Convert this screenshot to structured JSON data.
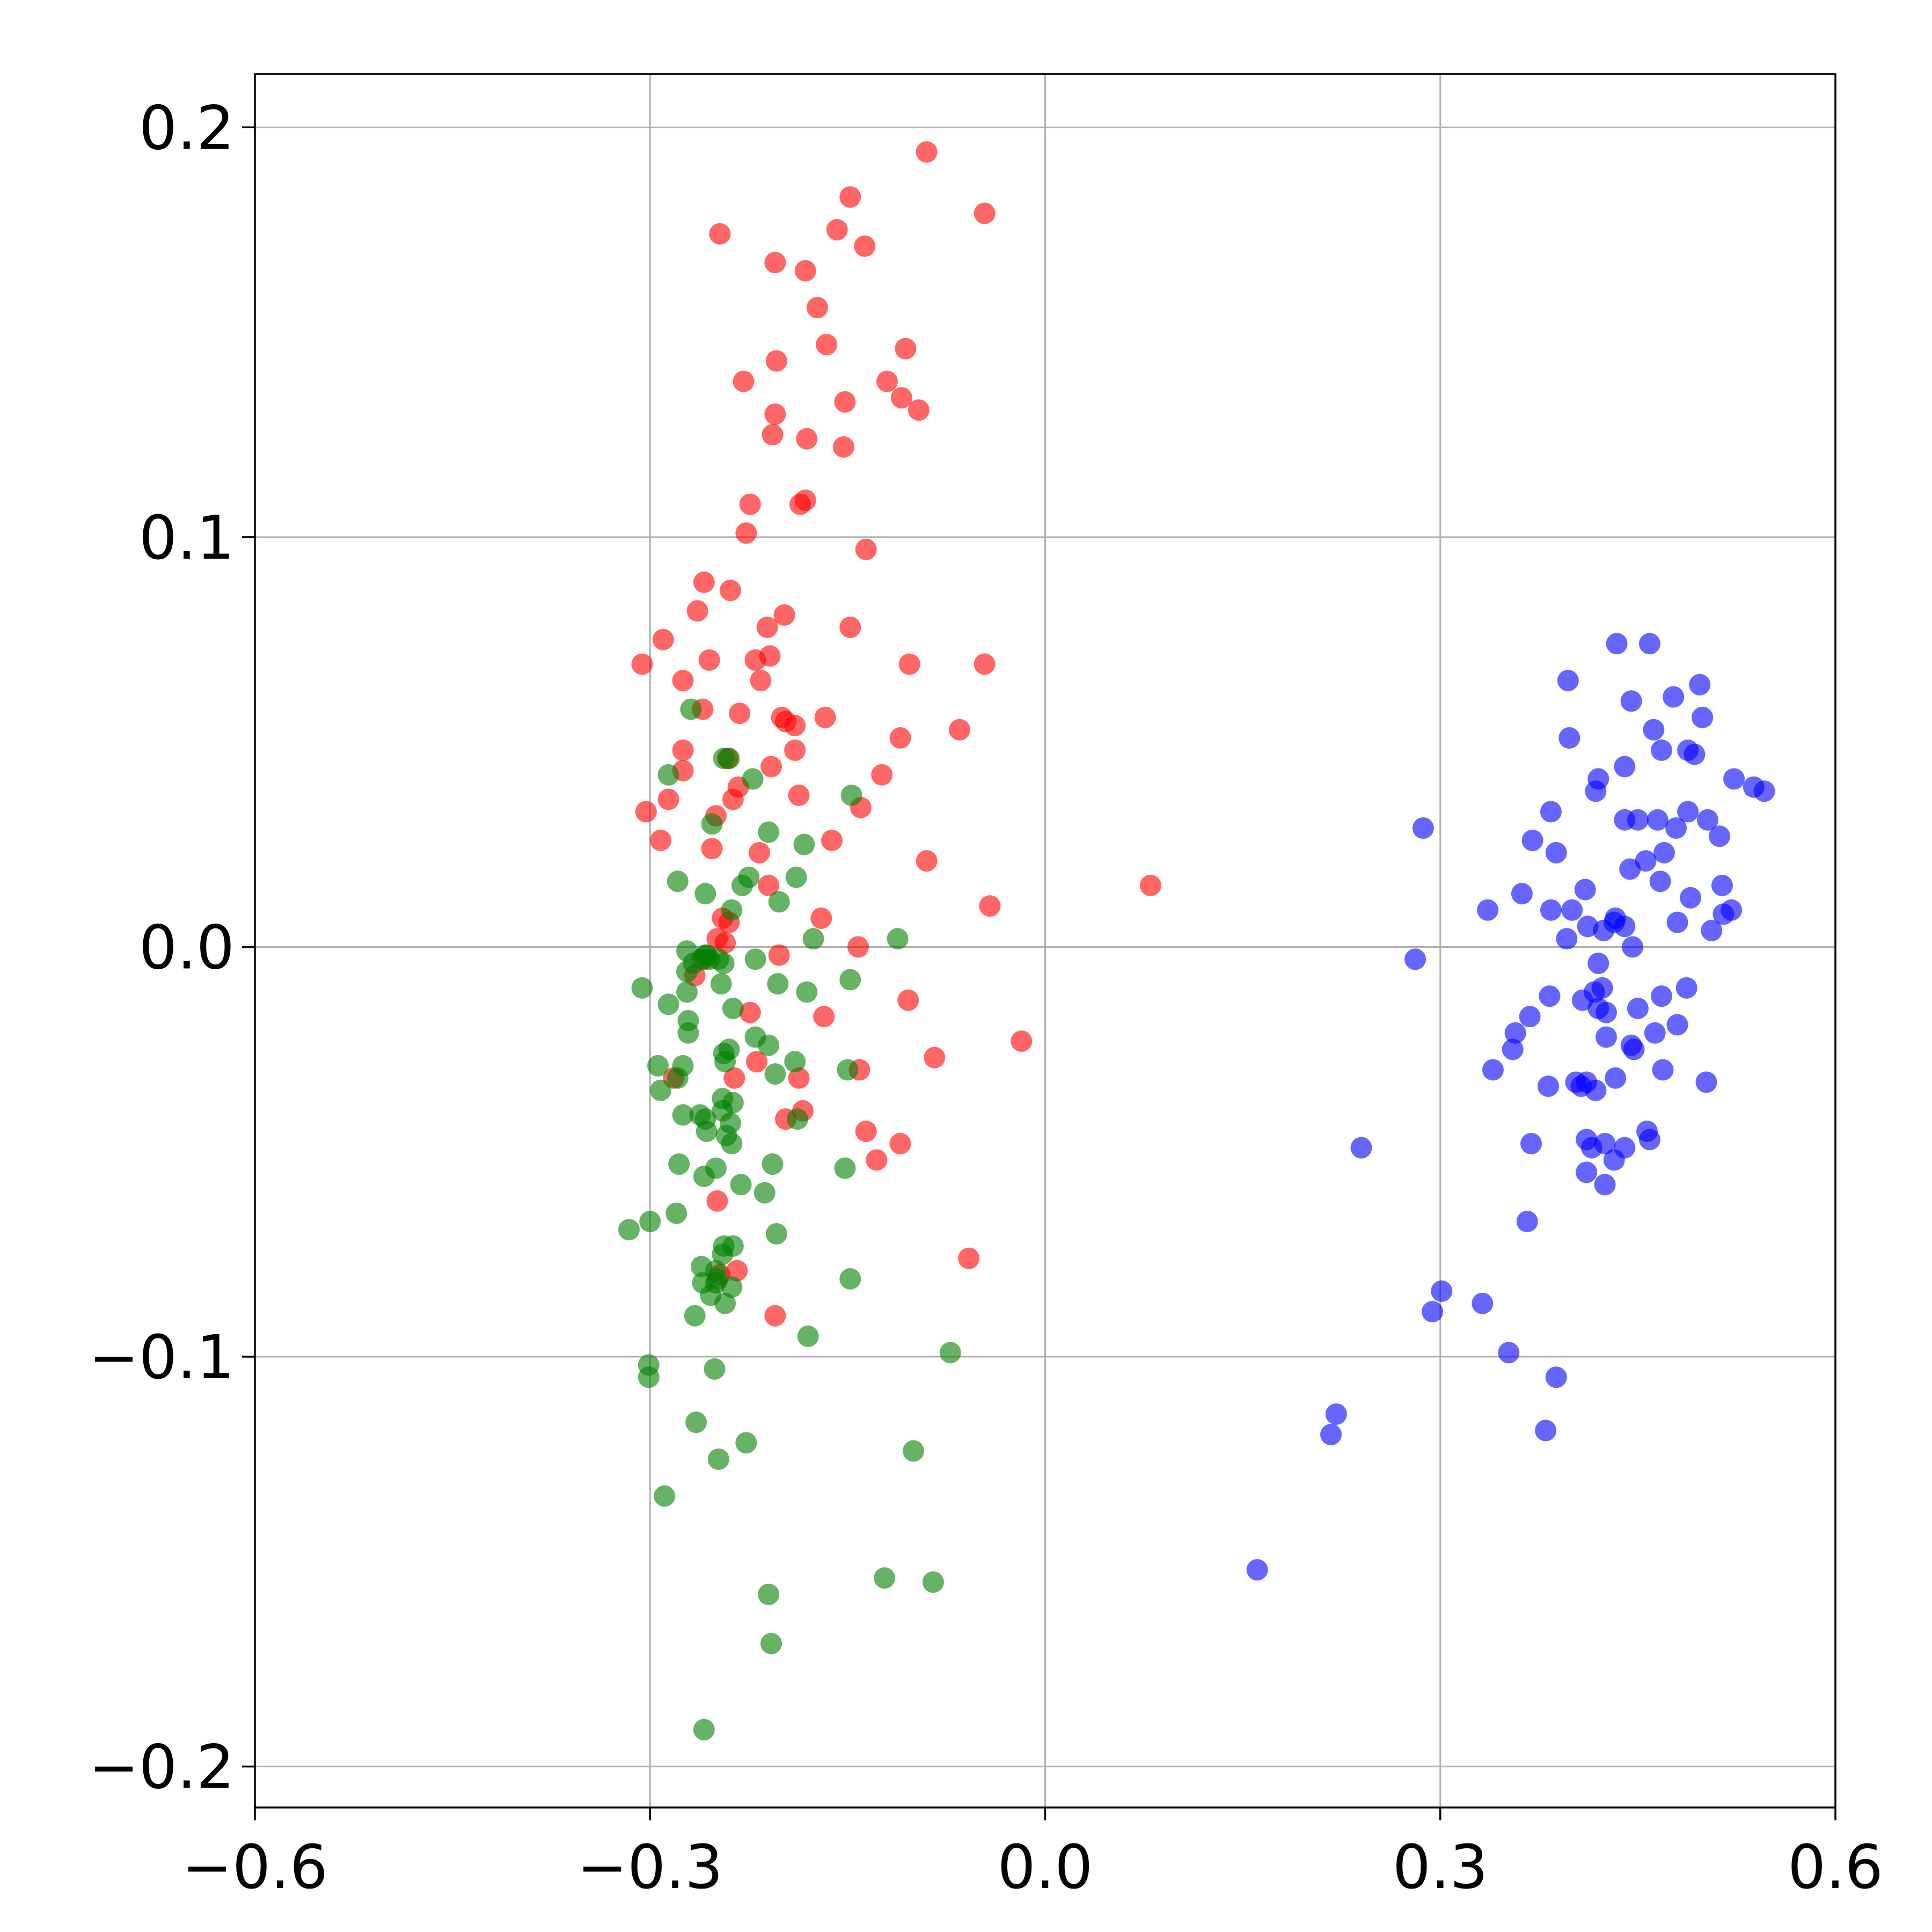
{
  "chart_data": {
    "type": "scatter",
    "title": "",
    "xlabel": "",
    "ylabel": "",
    "xlim": [
      -0.6,
      0.6
    ],
    "ylim": [
      -0.21,
      0.213
    ],
    "grid": true,
    "x_ticks": [
      -0.6,
      -0.3,
      0.0,
      0.3,
      0.6
    ],
    "x_tick_labels": [
      "−0.6",
      "−0.3",
      "0.0",
      "0.3",
      "0.6"
    ],
    "y_ticks": [
      -0.2,
      -0.1,
      0.0,
      0.1,
      0.2
    ],
    "y_tick_labels": [
      "−0.2",
      "−0.1",
      "0.0",
      "0.1",
      "0.2"
    ],
    "marker_alpha": 0.6,
    "series": [
      {
        "color": "#ff0000",
        "points": [
          [
            -0.09,
            0.194
          ],
          [
            -0.046,
            0.179
          ],
          [
            -0.148,
            0.183
          ],
          [
            -0.158,
            0.175
          ],
          [
            -0.247,
            0.174
          ],
          [
            -0.137,
            0.171
          ],
          [
            -0.205,
            0.167
          ],
          [
            -0.182,
            0.165
          ],
          [
            -0.173,
            0.156
          ],
          [
            -0.106,
            0.146
          ],
          [
            -0.166,
            0.147
          ],
          [
            -0.204,
            0.143
          ],
          [
            -0.229,
            0.138
          ],
          [
            -0.12,
            0.138
          ],
          [
            -0.152,
            0.133
          ],
          [
            -0.109,
            0.134
          ],
          [
            -0.096,
            0.131
          ],
          [
            -0.205,
            0.13
          ],
          [
            -0.207,
            0.125
          ],
          [
            -0.181,
            0.124
          ],
          [
            -0.153,
            0.122
          ],
          [
            -0.182,
            0.109
          ],
          [
            -0.186,
            0.108
          ],
          [
            -0.224,
            0.108
          ],
          [
            -0.227,
            0.101
          ],
          [
            -0.136,
            0.097
          ],
          [
            -0.259,
            0.089
          ],
          [
            -0.239,
            0.087
          ],
          [
            -0.198,
            0.081
          ],
          [
            -0.264,
            0.082
          ],
          [
            -0.211,
            0.078
          ],
          [
            -0.148,
            0.078
          ],
          [
            -0.29,
            0.075
          ],
          [
            -0.306,
            0.069
          ],
          [
            -0.255,
            0.07
          ],
          [
            -0.22,
            0.07
          ],
          [
            -0.209,
            0.071
          ],
          [
            -0.103,
            0.069
          ],
          [
            -0.046,
            0.069
          ],
          [
            -0.275,
            0.065
          ],
          [
            -0.216,
            0.065
          ],
          [
            -0.26,
            0.058
          ],
          [
            -0.232,
            0.057
          ],
          [
            -0.2,
            0.056
          ],
          [
            -0.167,
            0.056
          ],
          [
            -0.065,
            0.053
          ],
          [
            -0.197,
            0.055
          ],
          [
            -0.19,
            0.054
          ],
          [
            -0.11,
            0.051
          ],
          [
            -0.275,
            0.048
          ],
          [
            -0.19,
            0.048
          ],
          [
            -0.241,
            0.046
          ],
          [
            -0.208,
            0.044
          ],
          [
            -0.124,
            0.042
          ],
          [
            -0.275,
            0.043
          ],
          [
            -0.233,
            0.039
          ],
          [
            -0.187,
            0.037
          ],
          [
            -0.286,
            0.036
          ],
          [
            -0.237,
            0.036
          ],
          [
            -0.303,
            0.033
          ],
          [
            -0.25,
            0.032
          ],
          [
            -0.14,
            0.034
          ],
          [
            -0.292,
            0.026
          ],
          [
            -0.162,
            0.026
          ],
          [
            -0.253,
            0.024
          ],
          [
            -0.217,
            0.023
          ],
          [
            -0.09,
            0.021
          ],
          [
            -0.21,
            0.015
          ],
          [
            0.08,
            0.015
          ],
          [
            -0.042,
            0.01
          ],
          [
            -0.17,
            0.007
          ],
          [
            -0.24,
            0.006
          ],
          [
            -0.245,
            0.007
          ],
          [
            -0.249,
            0.002
          ],
          [
            -0.243,
            0.001
          ],
          [
            -0.142,
            0.0
          ],
          [
            -0.202,
            -0.002
          ],
          [
            -0.259,
            -0.003
          ],
          [
            -0.266,
            -0.007
          ],
          [
            -0.104,
            -0.013
          ],
          [
            -0.224,
            -0.016
          ],
          [
            -0.168,
            -0.017
          ],
          [
            -0.018,
            -0.023
          ],
          [
            -0.219,
            -0.028
          ],
          [
            -0.084,
            -0.027
          ],
          [
            -0.141,
            -0.03
          ],
          [
            -0.282,
            -0.032
          ],
          [
            -0.236,
            -0.032
          ],
          [
            -0.187,
            -0.032
          ],
          [
            -0.197,
            -0.042
          ],
          [
            -0.184,
            -0.04
          ],
          [
            -0.136,
            -0.045
          ],
          [
            -0.11,
            -0.048
          ],
          [
            -0.128,
            -0.052
          ],
          [
            -0.249,
            -0.062
          ],
          [
            -0.058,
            -0.076
          ],
          [
            -0.234,
            -0.079
          ],
          [
            -0.247,
            -0.08
          ],
          [
            -0.205,
            -0.09
          ]
        ]
      },
      {
        "color": "#008000",
        "points": [
          [
            -0.269,
            0.058
          ],
          [
            -0.244,
            0.046
          ],
          [
            -0.24,
            0.046
          ],
          [
            -0.286,
            0.042
          ],
          [
            -0.222,
            0.041
          ],
          [
            -0.147,
            0.037
          ],
          [
            -0.253,
            0.03
          ],
          [
            -0.21,
            0.028
          ],
          [
            -0.183,
            0.025
          ],
          [
            -0.225,
            0.017
          ],
          [
            -0.279,
            0.016
          ],
          [
            -0.189,
            0.017
          ],
          [
            -0.23,
            0.015
          ],
          [
            -0.258,
            0.013
          ],
          [
            -0.202,
            0.011
          ],
          [
            -0.238,
            0.009
          ],
          [
            -0.176,
            0.002
          ],
          [
            -0.112,
            0.002
          ],
          [
            -0.272,
            -0.001
          ],
          [
            -0.261,
            -0.003
          ],
          [
            -0.258,
            -0.002
          ],
          [
            -0.267,
            -0.004
          ],
          [
            -0.255,
            -0.003
          ],
          [
            -0.248,
            -0.003
          ],
          [
            -0.22,
            -0.003
          ],
          [
            -0.257,
            -0.002
          ],
          [
            -0.244,
            -0.004
          ],
          [
            -0.272,
            -0.006
          ],
          [
            -0.246,
            -0.009
          ],
          [
            -0.148,
            -0.008
          ],
          [
            -0.306,
            -0.01
          ],
          [
            -0.272,
            -0.011
          ],
          [
            -0.203,
            -0.009
          ],
          [
            -0.181,
            -0.011
          ],
          [
            -0.286,
            -0.014
          ],
          [
            -0.237,
            -0.015
          ],
          [
            -0.271,
            -0.018
          ],
          [
            -0.271,
            -0.021
          ],
          [
            -0.22,
            -0.022
          ],
          [
            -0.21,
            -0.024
          ],
          [
            -0.24,
            -0.025
          ],
          [
            -0.244,
            -0.026
          ],
          [
            -0.275,
            -0.029
          ],
          [
            -0.294,
            -0.029
          ],
          [
            -0.243,
            -0.028
          ],
          [
            -0.19,
            -0.028
          ],
          [
            -0.279,
            -0.032
          ],
          [
            -0.15,
            -0.03
          ],
          [
            -0.205,
            -0.031
          ],
          [
            -0.292,
            -0.035
          ],
          [
            -0.245,
            -0.037
          ],
          [
            -0.245,
            -0.04
          ],
          [
            -0.237,
            -0.038
          ],
          [
            -0.275,
            -0.041
          ],
          [
            -0.262,
            -0.041
          ],
          [
            -0.258,
            -0.042
          ],
          [
            -0.239,
            -0.043
          ],
          [
            -0.257,
            -0.045
          ],
          [
            -0.188,
            -0.042
          ],
          [
            -0.242,
            -0.046
          ],
          [
            -0.238,
            -0.048
          ],
          [
            -0.278,
            -0.053
          ],
          [
            -0.259,
            -0.056
          ],
          [
            -0.25,
            -0.054
          ],
          [
            -0.207,
            -0.053
          ],
          [
            -0.152,
            -0.054
          ],
          [
            -0.231,
            -0.058
          ],
          [
            -0.213,
            -0.06
          ],
          [
            -0.28,
            -0.065
          ],
          [
            -0.3,
            -0.067
          ],
          [
            -0.316,
            -0.069
          ],
          [
            -0.204,
            -0.07
          ],
          [
            -0.244,
            -0.073
          ],
          [
            -0.245,
            -0.075
          ],
          [
            -0.237,
            -0.073
          ],
          [
            -0.25,
            -0.079
          ],
          [
            -0.261,
            -0.078
          ],
          [
            -0.249,
            -0.081
          ],
          [
            -0.148,
            -0.081
          ],
          [
            -0.26,
            -0.082
          ],
          [
            -0.25,
            -0.082
          ],
          [
            -0.238,
            -0.083
          ],
          [
            -0.254,
            -0.085
          ],
          [
            -0.243,
            -0.087
          ],
          [
            -0.266,
            -0.09
          ],
          [
            -0.18,
            -0.095
          ],
          [
            -0.072,
            -0.099
          ],
          [
            -0.301,
            -0.102
          ],
          [
            -0.301,
            -0.105
          ],
          [
            -0.251,
            -0.103
          ],
          [
            -0.265,
            -0.116
          ],
          [
            -0.227,
            -0.121
          ],
          [
            -0.1,
            -0.123
          ],
          [
            -0.248,
            -0.125
          ],
          [
            -0.289,
            -0.134
          ],
          [
            -0.122,
            -0.154
          ],
          [
            -0.21,
            -0.158
          ],
          [
            -0.085,
            -0.155
          ],
          [
            -0.208,
            -0.17
          ],
          [
            -0.259,
            -0.191
          ]
        ]
      },
      {
        "color": "#0000ff",
        "points": [
          [
            0.434,
            0.074
          ],
          [
            0.459,
            0.074
          ],
          [
            0.397,
            0.065
          ],
          [
            0.497,
            0.064
          ],
          [
            0.477,
            0.061
          ],
          [
            0.445,
            0.06
          ],
          [
            0.462,
            0.053
          ],
          [
            0.499,
            0.056
          ],
          [
            0.398,
            0.051
          ],
          [
            0.468,
            0.048
          ],
          [
            0.488,
            0.048
          ],
          [
            0.493,
            0.047
          ],
          [
            0.44,
            0.044
          ],
          [
            0.42,
            0.041
          ],
          [
            0.523,
            0.041
          ],
          [
            0.538,
            0.039
          ],
          [
            0.546,
            0.038
          ],
          [
            0.418,
            0.038
          ],
          [
            0.384,
            0.033
          ],
          [
            0.488,
            0.033
          ],
          [
            0.44,
            0.031
          ],
          [
            0.45,
            0.031
          ],
          [
            0.465,
            0.031
          ],
          [
            0.503,
            0.031
          ],
          [
            0.479,
            0.029
          ],
          [
            0.287,
            0.029
          ],
          [
            0.512,
            0.027
          ],
          [
            0.37,
            0.026
          ],
          [
            0.388,
            0.023
          ],
          [
            0.47,
            0.023
          ],
          [
            0.456,
            0.021
          ],
          [
            0.444,
            0.019
          ],
          [
            0.467,
            0.016
          ],
          [
            0.514,
            0.015
          ],
          [
            0.41,
            0.014
          ],
          [
            0.362,
            0.013
          ],
          [
            0.49,
            0.012
          ],
          [
            0.336,
            0.009
          ],
          [
            0.384,
            0.009
          ],
          [
            0.4,
            0.009
          ],
          [
            0.521,
            0.009
          ],
          [
            0.515,
            0.008
          ],
          [
            0.433,
            0.007
          ],
          [
            0.432,
            0.006
          ],
          [
            0.48,
            0.006
          ],
          [
            0.44,
            0.005
          ],
          [
            0.412,
            0.005
          ],
          [
            0.424,
            0.004
          ],
          [
            0.506,
            0.004
          ],
          [
            0.396,
            0.002
          ],
          [
            0.446,
            0.0
          ],
          [
            0.281,
            -0.003
          ],
          [
            0.42,
            -0.004
          ],
          [
            0.423,
            -0.01
          ],
          [
            0.487,
            -0.01
          ],
          [
            0.383,
            -0.012
          ],
          [
            0.417,
            -0.011
          ],
          [
            0.468,
            -0.012
          ],
          [
            0.408,
            -0.013
          ],
          [
            0.42,
            -0.015
          ],
          [
            0.45,
            -0.015
          ],
          [
            0.426,
            -0.016
          ],
          [
            0.368,
            -0.017
          ],
          [
            0.48,
            -0.019
          ],
          [
            0.357,
            -0.021
          ],
          [
            0.463,
            -0.021
          ],
          [
            0.426,
            -0.022
          ],
          [
            0.445,
            -0.024
          ],
          [
            0.447,
            -0.025
          ],
          [
            0.355,
            -0.025
          ],
          [
            0.34,
            -0.03
          ],
          [
            0.469,
            -0.03
          ],
          [
            0.433,
            -0.032
          ],
          [
            0.403,
            -0.033
          ],
          [
            0.411,
            -0.033
          ],
          [
            0.502,
            -0.033
          ],
          [
            0.407,
            -0.034
          ],
          [
            0.382,
            -0.034
          ],
          [
            0.418,
            -0.035
          ],
          [
            0.411,
            -0.047
          ],
          [
            0.457,
            -0.045
          ],
          [
            0.459,
            -0.047
          ],
          [
            0.425,
            -0.048
          ],
          [
            0.369,
            -0.048
          ],
          [
            0.415,
            -0.049
          ],
          [
            0.44,
            -0.049
          ],
          [
            0.24,
            -0.049
          ],
          [
            0.432,
            -0.052
          ],
          [
            0.411,
            -0.055
          ],
          [
            0.425,
            -0.058
          ],
          [
            0.366,
            -0.067
          ],
          [
            0.301,
            -0.084
          ],
          [
            0.294,
            -0.089
          ],
          [
            0.332,
            -0.087
          ],
          [
            0.352,
            -0.099
          ],
          [
            0.388,
            -0.105
          ],
          [
            0.221,
            -0.114
          ],
          [
            0.217,
            -0.119
          ],
          [
            0.38,
            -0.118
          ],
          [
            0.161,
            -0.152
          ]
        ]
      }
    ]
  }
}
